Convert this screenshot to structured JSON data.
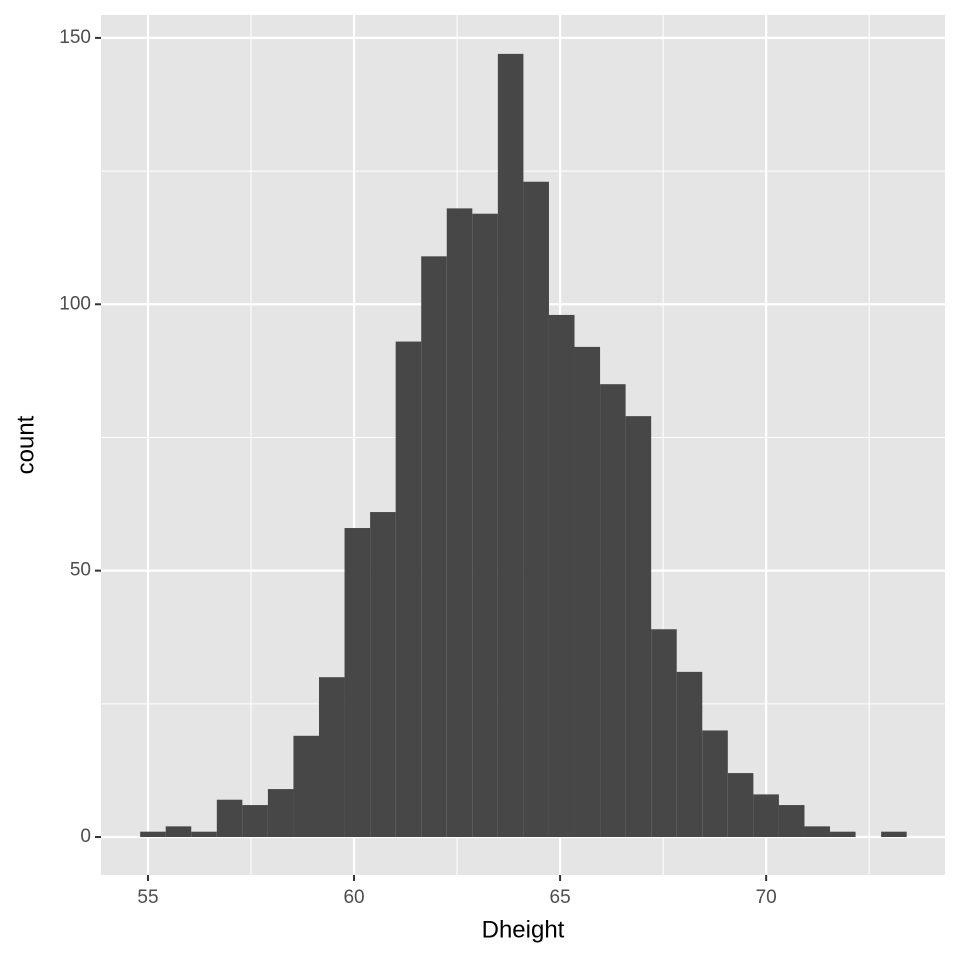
{
  "chart_data": {
    "type": "histogram",
    "x_label": "Dheight",
    "y_label": "count",
    "bins": [
      54.81,
      55.43,
      56.05,
      56.67,
      57.29,
      57.91,
      58.53,
      59.15,
      59.77,
      60.39,
      61.01,
      61.63,
      62.25,
      62.87,
      63.49,
      64.11,
      64.73,
      65.35,
      65.97,
      66.59,
      67.21,
      67.83,
      68.45,
      69.07,
      69.69,
      70.31,
      70.93,
      71.55,
      72.17,
      72.79,
      73.41
    ],
    "values": [
      1,
      2,
      1,
      7,
      6,
      9,
      19,
      30,
      58,
      61,
      93,
      109,
      118,
      117,
      147,
      123,
      98,
      92,
      85,
      79,
      39,
      31,
      20,
      12,
      8,
      6,
      2,
      1,
      0,
      1
    ],
    "color": "#474747",
    "xlim": [
      53.86,
      74.34
    ],
    "xticks": [
      55,
      60,
      65,
      70
    ],
    "x_minor_grid": [
      57.5,
      62.5,
      67.5,
      72.5
    ],
    "ylim": [
      -7.13,
      154.3
    ],
    "yticks": [
      0,
      50,
      100,
      150
    ],
    "y_minor_grid": [
      25,
      75,
      125
    ],
    "grid": true,
    "panel_color": "#e5e5e5"
  }
}
